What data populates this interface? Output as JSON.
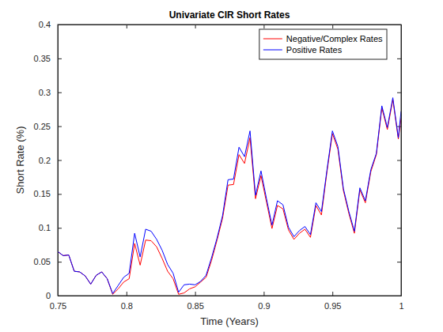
{
  "chart_data": {
    "type": "line",
    "title": "Univariate CIR Short Rates",
    "x_label": "Time (Years)",
    "y_label": "Short Rate (%)",
    "x": [
      0.75,
      0.754,
      0.758,
      0.762,
      0.766,
      0.77,
      0.774,
      0.778,
      0.782,
      0.786,
      0.79,
      0.794,
      0.798,
      0.802,
      0.806,
      0.81,
      0.814,
      0.818,
      0.822,
      0.826,
      0.83,
      0.834,
      0.838,
      0.842,
      0.846,
      0.85,
      0.854,
      0.858,
      0.862,
      0.866,
      0.87,
      0.874,
      0.878,
      0.882,
      0.886,
      0.89,
      0.894,
      0.898,
      0.902,
      0.906,
      0.91,
      0.914,
      0.918,
      0.922,
      0.926,
      0.93,
      0.934,
      0.938,
      0.942,
      0.946,
      0.95,
      0.954,
      0.958,
      0.962,
      0.966,
      0.97,
      0.974,
      0.978,
      0.982,
      0.986,
      0.99,
      0.994,
      0.998,
      1.0
    ],
    "series": [
      {
        "name": "Negative/Complex Rates",
        "color": "#ff0000",
        "line_style": "solid",
        "values": [
          0.065,
          0.059,
          0.06,
          0.036,
          0.035,
          0.029,
          0.017,
          0.03,
          0.035,
          0.025,
          0.002,
          0.01,
          0.02,
          0.025,
          0.077,
          0.045,
          0.082,
          0.081,
          0.072,
          0.055,
          0.036,
          0.025,
          0.002,
          0.004,
          0.01,
          0.013,
          0.02,
          0.027,
          0.052,
          0.082,
          0.114,
          0.163,
          0.164,
          0.208,
          0.195,
          0.233,
          0.143,
          0.177,
          0.138,
          0.099,
          0.133,
          0.128,
          0.097,
          0.083,
          0.092,
          0.098,
          0.086,
          0.133,
          0.119,
          0.182,
          0.239,
          0.216,
          0.155,
          0.121,
          0.092,
          0.156,
          0.137,
          0.183,
          0.208,
          0.277,
          0.245,
          0.289,
          0.231,
          0.262
        ]
      },
      {
        "name": "Positive Rates",
        "color": "#0000ff",
        "line_style": "solid",
        "values": [
          0.065,
          0.059,
          0.06,
          0.036,
          0.035,
          0.029,
          0.017,
          0.03,
          0.035,
          0.025,
          0.003,
          0.015,
          0.027,
          0.033,
          0.092,
          0.057,
          0.098,
          0.095,
          0.083,
          0.067,
          0.046,
          0.033,
          0.005,
          0.016,
          0.017,
          0.016,
          0.021,
          0.03,
          0.056,
          0.085,
          0.118,
          0.171,
          0.172,
          0.219,
          0.205,
          0.243,
          0.148,
          0.184,
          0.143,
          0.104,
          0.14,
          0.134,
          0.101,
          0.087,
          0.096,
          0.102,
          0.09,
          0.137,
          0.124,
          0.185,
          0.243,
          0.22,
          0.158,
          0.124,
          0.095,
          0.159,
          0.14,
          0.186,
          0.21,
          0.28,
          0.248,
          0.292,
          0.233,
          0.272
        ]
      }
    ],
    "xlim": [
      0.75,
      1
    ],
    "ylim": [
      0,
      0.4
    ],
    "xticks": [
      0.75,
      0.8,
      0.85,
      0.9,
      0.95,
      1
    ],
    "yticks": [
      0,
      0.05,
      0.1,
      0.15,
      0.2,
      0.25,
      0.3,
      0.35,
      0.4
    ],
    "grid": false,
    "legend": "northeast"
  }
}
